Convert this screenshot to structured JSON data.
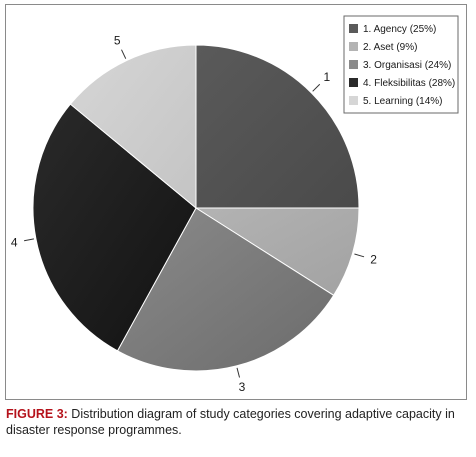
{
  "chart_data": {
    "type": "pie",
    "start_angle_deg": 0,
    "direction": "clockwise",
    "slices": [
      {
        "number": "1",
        "legend": "1. Agency (25%)",
        "value": 25,
        "color": "#5a5a5a",
        "gradient_to": "#4a4a4a"
      },
      {
        "number": "2",
        "legend": "2. Aset (9%)",
        "value": 9,
        "color": "#b3b3b3",
        "gradient_to": "#a2a2a2"
      },
      {
        "number": "3",
        "legend": "3. Organisasi (24%)",
        "value": 24,
        "color": "#8a8a8a",
        "gradient_to": "#6c6c6c"
      },
      {
        "number": "4",
        "legend": "4. Fleksibilitas (28%)",
        "value": 28,
        "color": "#2a2a2a",
        "gradient_to": "#121212"
      },
      {
        "number": "5",
        "legend": "5. Learning (14%)",
        "value": 14,
        "color": "#d6d6d6",
        "gradient_to": "#c4c4c4"
      }
    ],
    "legend_position": "top-right"
  },
  "caption": {
    "label": "FIGURE 3:",
    "text": " Distribution diagram of study categories covering adaptive capacity in disaster response programmes."
  }
}
